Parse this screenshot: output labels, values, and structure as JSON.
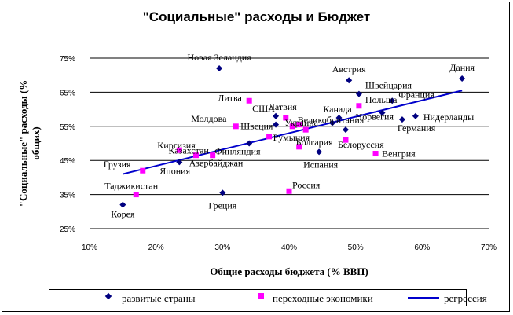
{
  "chart_data": {
    "type": "scatter",
    "title": "\"Социальные\" расходы и Бюджет",
    "xlabel": "Общие расходы бюджета (% ВВП)",
    "ylabel": "\"Социальные\" расходы (% общих)",
    "xlim": [
      10,
      70
    ],
    "ylim": [
      25,
      75
    ],
    "xticks": [
      "10%",
      "20%",
      "30%",
      "40%",
      "50%",
      "60%",
      "70%"
    ],
    "yticks": [
      "25%",
      "35%",
      "45%",
      "55%",
      "65%",
      "75%"
    ],
    "grid": "horizontal",
    "legend_position": "bottom",
    "series": [
      {
        "name": "развитые страны",
        "marker": "diamond",
        "color": "#000080",
        "points": [
          {
            "label": "Новая Зеландия",
            "x": 29.5,
            "y": 72.0
          },
          {
            "label": "Австрия",
            "x": 49.0,
            "y": 68.5
          },
          {
            "label": "Дания",
            "x": 66.0,
            "y": 69.0
          },
          {
            "label": "Швейцария",
            "x": 50.5,
            "y": 64.5
          },
          {
            "label": "Франция",
            "x": 55.5,
            "y": 62.5
          },
          {
            "label": "Канада",
            "x": 47.5,
            "y": 57.5
          },
          {
            "label": "Великобритания",
            "x": 46.5,
            "y": 56.0
          },
          {
            "label": "Норвегия",
            "x": 54.0,
            "y": 59.0
          },
          {
            "label": "Нидерланды",
            "x": 59.0,
            "y": 58.0
          },
          {
            "label": "Германия",
            "x": 57.0,
            "y": 57.0
          },
          {
            "label": "США",
            "x": 38.0,
            "y": 58.0
          },
          {
            "label": "Швеция",
            "x": 38.0,
            "y": 55.5
          },
          {
            "label": "Финляндия",
            "x": 34.0,
            "y": 50.0
          },
          {
            "label": "Испания",
            "x": 44.5,
            "y": 47.5
          },
          {
            "label": "Япония",
            "x": 23.5,
            "y": 44.5
          },
          {
            "label": "Греция",
            "x": 30.0,
            "y": 35.5
          },
          {
            "label": "Корея",
            "x": 15.0,
            "y": 32.0
          },
          {
            "label": "",
            "x": 48.5,
            "y": 54.0
          }
        ]
      },
      {
        "name": "переходные экономики",
        "marker": "square",
        "color": "#ff00ff",
        "points": [
          {
            "label": "Литва",
            "x": 34.0,
            "y": 62.5
          },
          {
            "label": "Латвия",
            "x": 39.5,
            "y": 57.5
          },
          {
            "label": "Польша",
            "x": 50.5,
            "y": 61.0
          },
          {
            "label": "Молдова",
            "x": 32.0,
            "y": 55.0
          },
          {
            "label": "Украина",
            "x": 40.5,
            "y": 55.0
          },
          {
            "label": "Румыния",
            "x": 37.0,
            "y": 52.0
          },
          {
            "label": "Болгария",
            "x": 41.5,
            "y": 49.0
          },
          {
            "label": "Белоруссия",
            "x": 48.5,
            "y": 51.0
          },
          {
            "label": "Киргизия",
            "x": 23.5,
            "y": 48.0
          },
          {
            "label": "Казахстан",
            "x": 26.0,
            "y": 46.5
          },
          {
            "label": "Азербайджан",
            "x": 28.5,
            "y": 46.5
          },
          {
            "label": "Грузия",
            "x": 18.0,
            "y": 42.0
          },
          {
            "label": "Таджикистан",
            "x": 17.0,
            "y": 35.0
          },
          {
            "label": "Россия",
            "x": 40.0,
            "y": 36.0
          },
          {
            "label": "Венгрия",
            "x": 53.0,
            "y": 47.0
          },
          {
            "label": "",
            "x": 41.5,
            "y": 55.5
          },
          {
            "label": "",
            "x": 42.5,
            "y": 54.0
          }
        ]
      },
      {
        "name": "регрессия",
        "type": "line",
        "color": "#0000cc",
        "points": [
          {
            "x": 15.0,
            "y": 41.0
          },
          {
            "x": 66.0,
            "y": 65.5
          }
        ]
      }
    ]
  }
}
